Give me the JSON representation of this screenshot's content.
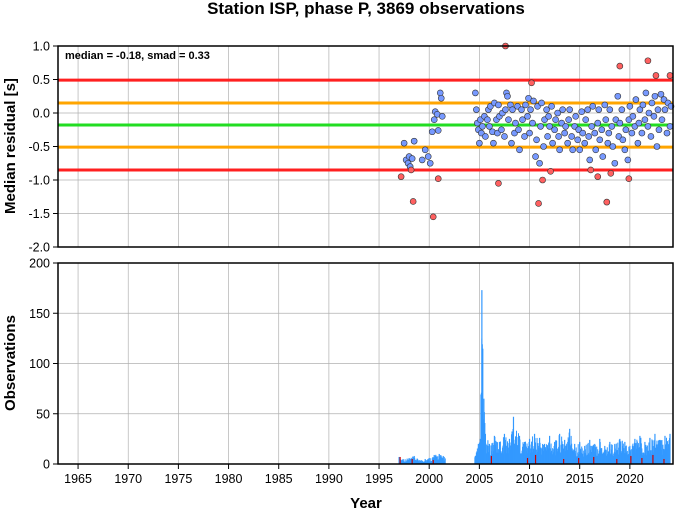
{
  "chart_data": [
    {
      "type": "scatter",
      "title": "Station ISP, phase P, 3869 observations",
      "ylabel": "Median residual [s]",
      "annotation": "median = -0.18, smad = 0.33",
      "xlim": [
        1963,
        2024.3
      ],
      "ylim": [
        -2.0,
        1.0
      ],
      "yticks": [
        "1.0",
        "0.5",
        "0.0",
        "-0.5",
        "-1.0",
        "-1.5",
        "-2.0"
      ],
      "grid": true,
      "reference_lines": [
        {
          "y": 0.49,
          "color": "#ff2020"
        },
        {
          "y": 0.15,
          "color": "#ffa500"
        },
        {
          "y": -0.18,
          "color": "#22dd22"
        },
        {
          "y": -0.51,
          "color": "#ffa500"
        },
        {
          "y": -0.85,
          "color": "#ff2020"
        }
      ],
      "series": [
        {
          "color": "#7799ff",
          "points": [
            [
              1997.5,
              -0.45
            ],
            [
              1997.7,
              -0.7
            ],
            [
              1997.9,
              -0.75
            ],
            [
              1998.0,
              -0.65
            ],
            [
              1998.1,
              -0.8
            ],
            [
              1998.3,
              -0.68
            ],
            [
              1998.5,
              -0.42
            ],
            [
              1999.3,
              -0.7
            ],
            [
              1999.6,
              -0.55
            ],
            [
              1999.9,
              -0.65
            ],
            [
              2000.1,
              -0.75
            ],
            [
              2000.3,
              -0.28
            ],
            [
              2000.5,
              -0.1
            ],
            [
              2000.6,
              0.02
            ],
            [
              2000.8,
              -0.02
            ],
            [
              2000.9,
              -0.26
            ],
            [
              2001.1,
              0.3
            ],
            [
              2001.2,
              0.22
            ],
            [
              2001.3,
              -0.05
            ],
            [
              2004.6,
              0.3
            ],
            [
              2004.7,
              0.05
            ],
            [
              2004.8,
              -0.15
            ],
            [
              2004.9,
              -0.25
            ],
            [
              2005.0,
              -0.45
            ],
            [
              2005.1,
              -0.1
            ],
            [
              2005.2,
              -0.3
            ],
            [
              2005.3,
              -0.2
            ],
            [
              2005.5,
              -0.05
            ],
            [
              2005.6,
              -0.35
            ],
            [
              2005.8,
              -0.1
            ],
            [
              2005.9,
              0.05
            ],
            [
              2006.0,
              -0.2
            ],
            [
              2006.1,
              0.1
            ],
            [
              2006.3,
              -0.28
            ],
            [
              2006.4,
              -0.45
            ],
            [
              2006.5,
              0.15
            ],
            [
              2006.7,
              -0.1
            ],
            [
              2006.8,
              -0.3
            ],
            [
              2006.9,
              0.12
            ],
            [
              2007.0,
              -0.05
            ],
            [
              2007.2,
              -0.25
            ],
            [
              2007.3,
              0.0
            ],
            [
              2007.5,
              -0.35
            ],
            [
              2007.6,
              0.05
            ],
            [
              2007.7,
              0.3
            ],
            [
              2007.8,
              0.25
            ],
            [
              2007.9,
              -0.1
            ],
            [
              2008.1,
              0.12
            ],
            [
              2008.2,
              -0.45
            ],
            [
              2008.3,
              0.05
            ],
            [
              2008.5,
              -0.3
            ],
            [
              2008.6,
              -0.15
            ],
            [
              2008.8,
              0.1
            ],
            [
              2008.9,
              -0.25
            ],
            [
              2009.0,
              -0.55
            ],
            [
              2009.2,
              0.05
            ],
            [
              2009.3,
              -0.1
            ],
            [
              2009.5,
              -0.35
            ],
            [
              2009.6,
              0.12
            ],
            [
              2009.8,
              -0.05
            ],
            [
              2009.9,
              0.22
            ],
            [
              2010.0,
              -0.3
            ],
            [
              2010.1,
              0.05
            ],
            [
              2010.3,
              -0.15
            ],
            [
              2010.4,
              0.18
            ],
            [
              2010.6,
              -0.65
            ],
            [
              2010.7,
              -0.4
            ],
            [
              2010.8,
              0.1
            ],
            [
              2011.0,
              -0.75
            ],
            [
              2011.1,
              -0.2
            ],
            [
              2011.2,
              0.15
            ],
            [
              2011.4,
              -0.5
            ],
            [
              2011.5,
              -0.1
            ],
            [
              2011.7,
              0.05
            ],
            [
              2011.8,
              -0.35
            ],
            [
              2011.9,
              -0.05
            ],
            [
              2012.0,
              -0.2
            ],
            [
              2012.2,
              0.1
            ],
            [
              2012.3,
              -0.45
            ],
            [
              2012.5,
              -0.25
            ],
            [
              2012.6,
              -0.1
            ],
            [
              2012.8,
              0.0
            ],
            [
              2012.9,
              -0.35
            ],
            [
              2013.0,
              -0.55
            ],
            [
              2013.2,
              -0.15
            ],
            [
              2013.3,
              0.05
            ],
            [
              2013.5,
              -0.3
            ],
            [
              2013.6,
              -0.2
            ],
            [
              2013.8,
              -0.45
            ],
            [
              2013.9,
              -0.1
            ],
            [
              2014.0,
              0.05
            ],
            [
              2014.2,
              -0.35
            ],
            [
              2014.3,
              -0.55
            ],
            [
              2014.5,
              -0.2
            ],
            [
              2014.6,
              -0.05
            ],
            [
              2014.8,
              -0.4
            ],
            [
              2014.9,
              -0.25
            ],
            [
              2015.0,
              -0.55
            ],
            [
              2015.2,
              0.02
            ],
            [
              2015.3,
              -0.3
            ],
            [
              2015.5,
              -0.45
            ],
            [
              2015.6,
              -0.1
            ],
            [
              2015.8,
              0.05
            ],
            [
              2015.9,
              -0.35
            ],
            [
              2016.0,
              -0.7
            ],
            [
              2016.2,
              -0.2
            ],
            [
              2016.3,
              0.1
            ],
            [
              2016.5,
              -0.3
            ],
            [
              2016.6,
              -0.55
            ],
            [
              2016.8,
              -0.15
            ],
            [
              2016.9,
              0.05
            ],
            [
              2017.0,
              -0.4
            ],
            [
              2017.2,
              -0.25
            ],
            [
              2017.3,
              -0.65
            ],
            [
              2017.5,
              0.12
            ],
            [
              2017.6,
              -0.1
            ],
            [
              2017.8,
              -0.45
            ],
            [
              2017.9,
              -0.3
            ],
            [
              2018.0,
              0.05
            ],
            [
              2018.2,
              -0.2
            ],
            [
              2018.3,
              -0.5
            ],
            [
              2018.5,
              -0.75
            ],
            [
              2018.6,
              -0.1
            ],
            [
              2018.8,
              0.25
            ],
            [
              2018.9,
              -0.35
            ],
            [
              2019.0,
              -0.15
            ],
            [
              2019.2,
              0.05
            ],
            [
              2019.3,
              -0.4
            ],
            [
              2019.5,
              -0.55
            ],
            [
              2019.6,
              -0.25
            ],
            [
              2019.8,
              -0.7
            ],
            [
              2019.9,
              -0.1
            ],
            [
              2020.0,
              0.1
            ],
            [
              2020.2,
              -0.3
            ],
            [
              2020.3,
              -0.05
            ],
            [
              2020.5,
              -0.2
            ],
            [
              2020.6,
              0.2
            ],
            [
              2020.8,
              -0.45
            ],
            [
              2020.9,
              -0.15
            ],
            [
              2021.0,
              0.05
            ],
            [
              2021.2,
              -0.3
            ],
            [
              2021.3,
              0.12
            ],
            [
              2021.5,
              -0.1
            ],
            [
              2021.6,
              0.3
            ],
            [
              2021.8,
              -0.2
            ],
            [
              2021.9,
              0.0
            ],
            [
              2022.1,
              -0.35
            ],
            [
              2022.2,
              0.15
            ],
            [
              2022.4,
              -0.05
            ],
            [
              2022.5,
              0.25
            ],
            [
              2022.7,
              -0.5
            ],
            [
              2022.8,
              0.05
            ],
            [
              2022.9,
              -0.25
            ],
            [
              2023.1,
              0.28
            ],
            [
              2023.2,
              -0.1
            ],
            [
              2023.4,
              0.2
            ],
            [
              2023.5,
              0.05
            ],
            [
              2023.7,
              -0.3
            ],
            [
              2023.8,
              0.15
            ],
            [
              2024.0,
              -0.2
            ],
            [
              2024.1,
              0.1
            ]
          ]
        },
        {
          "color": "#ff6060",
          "points": [
            [
              1997.2,
              -0.95
            ],
            [
              1998.2,
              -0.85
            ],
            [
              1998.4,
              -1.32
            ],
            [
              2000.4,
              -1.55
            ],
            [
              2000.9,
              -0.98
            ],
            [
              2006.9,
              -1.05
            ],
            [
              2007.6,
              1.0
            ],
            [
              2010.2,
              0.45
            ],
            [
              2010.9,
              -1.35
            ],
            [
              2011.3,
              -1.0
            ],
            [
              2012.1,
              -0.87
            ],
            [
              2016.1,
              -0.85
            ],
            [
              2016.8,
              -0.95
            ],
            [
              2017.7,
              -1.33
            ],
            [
              2018.1,
              -0.9
            ],
            [
              2019.0,
              0.7
            ],
            [
              2019.9,
              -0.98
            ],
            [
              2021.8,
              0.78
            ],
            [
              2022.6,
              0.56
            ],
            [
              2024.0,
              0.56
            ]
          ]
        }
      ]
    },
    {
      "type": "bar",
      "ylabel": "Observations",
      "xlabel": "Year",
      "xlim": [
        1963,
        2024.3
      ],
      "ylim": [
        0,
        200
      ],
      "yticks": [
        "200",
        "150",
        "100",
        "50",
        "0"
      ],
      "xticks": [
        "1965",
        "1970",
        "1975",
        "1980",
        "1985",
        "1990",
        "1995",
        "2000",
        "2005",
        "2010",
        "2015",
        "2020"
      ],
      "grid": true,
      "series": [
        {
          "color": "#3399ff",
          "peaks": [
            [
              1997.0,
              7
            ],
            [
              1997.4,
              5
            ],
            [
              1998.0,
              6
            ],
            [
              1998.5,
              8
            ],
            [
              1999.0,
              4
            ],
            [
              1999.6,
              5
            ],
            [
              2000.0,
              6
            ],
            [
              2000.5,
              9
            ],
            [
              2001.0,
              10
            ],
            [
              2001.4,
              8
            ],
            [
              2004.6,
              8
            ],
            [
              2004.9,
              20
            ],
            [
              2005.1,
              25
            ],
            [
              2005.25,
              173
            ],
            [
              2005.45,
              65
            ],
            [
              2005.6,
              30
            ],
            [
              2006.0,
              20
            ],
            [
              2006.5,
              28
            ],
            [
              2007.0,
              22
            ],
            [
              2007.5,
              30
            ],
            [
              2008.0,
              25
            ],
            [
              2008.4,
              47
            ],
            [
              2009.0,
              28
            ],
            [
              2009.5,
              22
            ],
            [
              2010.0,
              25
            ],
            [
              2010.5,
              30
            ],
            [
              2011.0,
              26
            ],
            [
              2011.5,
              20
            ],
            [
              2012.0,
              28
            ],
            [
              2012.5,
              22
            ],
            [
              2013.0,
              30
            ],
            [
              2013.5,
              24
            ],
            [
              2014.0,
              35
            ],
            [
              2014.5,
              20
            ],
            [
              2015.0,
              22
            ],
            [
              2015.5,
              18
            ],
            [
              2016.0,
              24
            ],
            [
              2016.5,
              20
            ],
            [
              2017.0,
              25
            ],
            [
              2017.5,
              18
            ],
            [
              2018.0,
              22
            ],
            [
              2018.5,
              20
            ],
            [
              2019.0,
              25
            ],
            [
              2019.5,
              22
            ],
            [
              2020.0,
              18
            ],
            [
              2020.5,
              25
            ],
            [
              2021.0,
              28
            ],
            [
              2021.5,
              22
            ],
            [
              2022.0,
              26
            ],
            [
              2022.5,
              30
            ],
            [
              2023.0,
              24
            ],
            [
              2023.5,
              28
            ],
            [
              2024.0,
              30
            ]
          ]
        },
        {
          "color": "#cc0000",
          "peaks": [
            [
              1997.1,
              7
            ],
            [
              1998.3,
              5
            ],
            [
              2000.4,
              4
            ],
            [
              2006.2,
              8
            ],
            [
              2009.8,
              6
            ],
            [
              2010.6,
              9
            ],
            [
              2013.4,
              5
            ],
            [
              2014.9,
              6
            ],
            [
              2016.4,
              7
            ],
            [
              2018.7,
              5
            ],
            [
              2020.1,
              8
            ],
            [
              2021.2,
              6
            ],
            [
              2022.3,
              9
            ],
            [
              2023.4,
              5
            ]
          ]
        }
      ]
    }
  ]
}
